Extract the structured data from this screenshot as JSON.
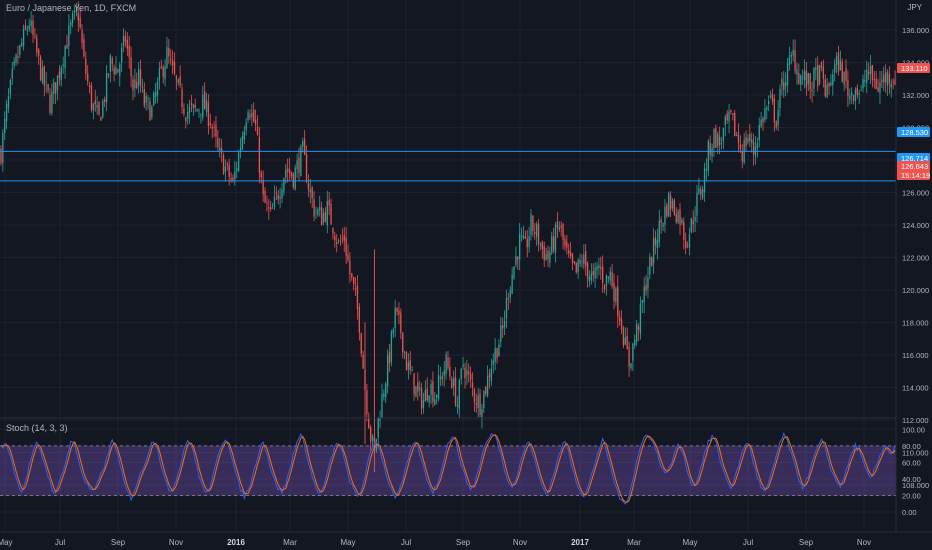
{
  "header": {
    "symbol_title": "Euro / Japanese Yen, 1D, FXCM",
    "currency": "JPY",
    "indicator_title": "Stoch (14, 3, 3)"
  },
  "colors": {
    "background": "#131722",
    "grid": "#1e222d",
    "up": "#26a69a",
    "down": "#ef5350",
    "hline": "#2196f3",
    "stoch_k": "#2962ff",
    "stoch_d": "#ff6d00",
    "stoch_band": "#7e57c2"
  },
  "price_axis": [
    "136.000",
    "134.000",
    "132.000",
    "130.000",
    "128.000",
    "126.000",
    "124.000",
    "122.000",
    "120.000",
    "118.000",
    "116.000",
    "114.000",
    "112.000",
    "110.000",
    "108.000"
  ],
  "stoch_axis": [
    "100.00",
    "80.00",
    "60.00",
    "40.00",
    "20.00",
    "0.00"
  ],
  "time_axis": [
    {
      "label": "May",
      "bold": false
    },
    {
      "label": "Jul",
      "bold": false
    },
    {
      "label": "Sep",
      "bold": false
    },
    {
      "label": "Nov",
      "bold": false
    },
    {
      "label": "2016",
      "bold": true
    },
    {
      "label": "Mar",
      "bold": false
    },
    {
      "label": "May",
      "bold": false
    },
    {
      "label": "Jul",
      "bold": false
    },
    {
      "label": "Sep",
      "bold": false
    },
    {
      "label": "Nov",
      "bold": false
    },
    {
      "label": "2017",
      "bold": true
    },
    {
      "label": "Mar",
      "bold": false
    },
    {
      "label": "May",
      "bold": false
    },
    {
      "label": "Jul",
      "bold": false
    },
    {
      "label": "Sep",
      "bold": false
    },
    {
      "label": "Nov",
      "bold": false
    }
  ],
  "price_tags": [
    {
      "label": "133.110",
      "color": "#ef5350",
      "value": 133.11
    },
    {
      "label": "128.530",
      "color": "#2196f3",
      "value": 128.53
    },
    {
      "label": "126.714",
      "color": "#2196f3",
      "value": 126.714
    },
    {
      "label": "126.643",
      "color": "#ef5350",
      "value": 126.643
    },
    {
      "label": "15:14:19",
      "color": "#ef5350",
      "value": 125.9
    }
  ],
  "horizontal_lines": [
    128.53,
    126.714
  ],
  "stoch_bands": [
    20,
    80
  ],
  "chart_data": {
    "type": "candlestick",
    "ylim": [
      108,
      137
    ],
    "stoch_ylim": [
      0,
      100
    ],
    "close_path": [
      [
        0,
        128.5
      ],
      [
        3,
        131
      ],
      [
        6,
        133
      ],
      [
        8,
        134
      ],
      [
        12,
        135.5
      ],
      [
        15,
        136.5
      ],
      [
        18,
        135
      ],
      [
        22,
        133
      ],
      [
        26,
        131.5
      ],
      [
        30,
        133
      ],
      [
        34,
        135
      ],
      [
        38,
        136.5
      ],
      [
        41,
        137
      ],
      [
        44,
        134
      ],
      [
        48,
        131.5
      ],
      [
        52,
        130.5
      ],
      [
        55,
        132
      ],
      [
        58,
        134
      ],
      [
        62,
        133.5
      ],
      [
        66,
        135.5
      ],
      [
        70,
        132.5
      ],
      [
        73,
        133
      ],
      [
        76,
        131.5
      ],
      [
        80,
        131
      ],
      [
        84,
        133
      ],
      [
        88,
        134.5
      ],
      [
        92,
        133
      ],
      [
        95,
        132
      ],
      [
        98,
        131
      ],
      [
        103,
        131
      ],
      [
        107,
        131.5
      ],
      [
        111,
        130.5
      ],
      [
        115,
        128.5
      ],
      [
        119,
        127.5
      ],
      [
        123,
        126.5
      ],
      [
        127,
        129
      ],
      [
        131,
        131.5
      ],
      [
        135,
        130
      ],
      [
        139,
        125.5
      ],
      [
        143,
        124.5
      ],
      [
        147,
        126
      ],
      [
        151,
        127.5
      ],
      [
        155,
        127
      ],
      [
        160,
        128.5
      ],
      [
        163,
        126.5
      ],
      [
        166,
        125
      ],
      [
        170,
        124.5
      ],
      [
        173,
        125
      ],
      [
        176,
        124
      ],
      [
        179,
        122.8
      ],
      [
        182,
        123.2
      ],
      [
        185,
        121
      ],
      [
        188,
        119.5
      ],
      [
        190,
        118
      ],
      [
        193,
        114
      ],
      [
        196,
        111
      ],
      [
        198,
        110
      ],
      [
        200,
        112
      ],
      [
        203,
        114
      ],
      [
        206,
        116
      ],
      [
        209,
        118.5
      ],
      [
        212,
        117.5
      ],
      [
        215,
        115.5
      ],
      [
        218,
        114.5
      ],
      [
        221,
        113.5
      ],
      [
        224,
        113.2
      ],
      [
        227,
        114.2
      ],
      [
        230,
        113.5
      ],
      [
        233,
        114.5
      ],
      [
        236,
        115.5
      ],
      [
        239,
        114.5
      ],
      [
        242,
        113
      ],
      [
        245,
        115.5
      ],
      [
        248,
        114.5
      ],
      [
        251,
        113.5
      ],
      [
        254,
        113
      ],
      [
        257,
        114
      ],
      [
        260,
        115.5
      ],
      [
        263,
        116.5
      ],
      [
        266,
        117.5
      ],
      [
        269,
        120
      ],
      [
        272,
        121.5
      ],
      [
        275,
        123
      ],
      [
        278,
        122.5
      ],
      [
        281,
        124
      ],
      [
        284,
        123.5
      ],
      [
        287,
        122.5
      ],
      [
        290,
        122
      ],
      [
        293,
        123
      ],
      [
        296,
        124
      ],
      [
        299,
        122.5
      ],
      [
        302,
        121.5
      ],
      [
        305,
        121
      ],
      [
        308,
        122
      ],
      [
        311,
        121.2
      ],
      [
        314,
        120.5
      ],
      [
        317,
        121.5
      ],
      [
        320,
        120.5
      ],
      [
        323,
        121
      ],
      [
        326,
        119.5
      ],
      [
        329,
        118
      ],
      [
        331,
        116.5
      ],
      [
        333,
        115.5
      ],
      [
        336,
        117
      ],
      [
        339,
        118.5
      ],
      [
        342,
        120.5
      ],
      [
        345,
        122
      ],
      [
        348,
        123.5
      ],
      [
        351,
        124.5
      ],
      [
        354,
        125.5
      ],
      [
        357,
        125
      ],
      [
        360,
        124.5
      ],
      [
        363,
        123
      ],
      [
        366,
        124
      ],
      [
        369,
        125.5
      ],
      [
        372,
        126.5
      ],
      [
        375,
        128.5
      ],
      [
        378,
        129.5
      ],
      [
        381,
        129
      ],
      [
        384,
        130
      ],
      [
        387,
        130.5
      ],
      [
        390,
        129.5
      ],
      [
        393,
        128.5
      ],
      [
        396,
        129.5
      ],
      [
        399,
        128.5
      ],
      [
        402,
        130
      ],
      [
        405,
        131
      ],
      [
        408,
        131.5
      ],
      [
        411,
        130.5
      ],
      [
        414,
        132.5
      ],
      [
        417,
        133.5
      ],
      [
        420,
        134.5
      ],
      [
        423,
        133.2
      ],
      [
        426,
        133
      ],
      [
        429,
        132.5
      ],
      [
        432,
        133.2
      ],
      [
        435,
        133.2
      ],
      [
        438,
        132
      ],
      [
        441,
        133.5
      ],
      [
        444,
        134
      ],
      [
        447,
        133
      ],
      [
        450,
        132
      ],
      [
        453,
        132.5
      ],
      [
        456,
        132
      ],
      [
        459,
        133.5
      ],
      [
        462,
        133
      ],
      [
        465,
        132.5
      ],
      [
        468,
        133
      ],
      [
        471,
        133.2
      ],
      [
        474,
        133.1
      ]
    ],
    "stoch_k_path": [
      [
        0,
        78
      ],
      [
        3,
        82
      ],
      [
        5,
        68
      ],
      [
        7,
        50
      ],
      [
        9,
        34
      ],
      [
        11,
        26
      ],
      [
        13,
        37
      ],
      [
        15,
        56
      ],
      [
        17,
        73
      ],
      [
        19,
        82
      ],
      [
        21,
        72
      ],
      [
        23,
        60
      ],
      [
        25,
        44
      ],
      [
        27,
        30
      ],
      [
        29,
        21
      ],
      [
        31,
        36
      ],
      [
        33,
        52
      ],
      [
        35,
        66
      ],
      [
        37,
        86
      ],
      [
        39,
        82
      ],
      [
        41,
        64
      ],
      [
        43,
        47
      ],
      [
        45,
        36
      ],
      [
        47,
        29
      ],
      [
        49,
        24
      ],
      [
        51,
        33
      ],
      [
        53,
        45
      ],
      [
        55,
        57
      ],
      [
        57,
        72
      ],
      [
        59,
        86
      ],
      [
        61,
        78
      ],
      [
        63,
        57
      ],
      [
        65,
        38
      ],
      [
        67,
        24
      ],
      [
        69,
        17
      ],
      [
        71,
        28
      ],
      [
        73,
        40
      ],
      [
        75,
        51
      ],
      [
        77,
        64
      ],
      [
        79,
        79
      ],
      [
        81,
        87
      ],
      [
        83,
        78
      ],
      [
        85,
        56
      ],
      [
        87,
        38
      ],
      [
        89,
        26
      ],
      [
        91,
        28
      ],
      [
        93,
        40
      ],
      [
        95,
        56
      ],
      [
        97,
        75
      ],
      [
        99,
        88
      ],
      [
        101,
        80
      ],
      [
        103,
        63
      ],
      [
        105,
        45
      ],
      [
        107,
        30
      ],
      [
        109,
        22
      ],
      [
        111,
        32
      ],
      [
        113,
        48
      ],
      [
        115,
        66
      ],
      [
        117,
        82
      ],
      [
        119,
        89
      ],
      [
        121,
        80
      ],
      [
        123,
        60
      ],
      [
        125,
        42
      ],
      [
        127,
        28
      ],
      [
        129,
        19
      ],
      [
        131,
        26
      ],
      [
        133,
        40
      ],
      [
        135,
        58
      ],
      [
        137,
        76
      ],
      [
        139,
        85
      ],
      [
        141,
        72
      ],
      [
        143,
        52
      ],
      [
        145,
        38
      ],
      [
        147,
        29
      ],
      [
        149,
        24
      ],
      [
        151,
        34
      ],
      [
        153,
        50
      ],
      [
        155,
        70
      ],
      [
        157,
        86
      ],
      [
        159,
        92
      ],
      [
        161,
        82
      ],
      [
        163,
        60
      ],
      [
        165,
        42
      ],
      [
        167,
        30
      ],
      [
        169,
        21
      ],
      [
        171,
        30
      ],
      [
        173,
        46
      ],
      [
        175,
        64
      ],
      [
        177,
        78
      ],
      [
        179,
        84
      ],
      [
        181,
        72
      ],
      [
        183,
        54
      ],
      [
        185,
        38
      ],
      [
        187,
        26
      ],
      [
        189,
        18
      ],
      [
        191,
        26
      ],
      [
        193,
        44
      ],
      [
        195,
        64
      ],
      [
        197,
        78
      ],
      [
        199,
        86
      ],
      [
        201,
        74
      ],
      [
        203,
        56
      ],
      [
        205,
        40
      ],
      [
        207,
        28
      ],
      [
        209,
        19
      ],
      [
        211,
        24
      ],
      [
        213,
        38
      ],
      [
        215,
        56
      ],
      [
        217,
        72
      ],
      [
        219,
        85
      ],
      [
        221,
        80
      ],
      [
        223,
        62
      ],
      [
        225,
        46
      ],
      [
        227,
        33
      ],
      [
        229,
        25
      ],
      [
        231,
        32
      ],
      [
        233,
        48
      ],
      [
        235,
        66
      ],
      [
        237,
        82
      ],
      [
        239,
        92
      ],
      [
        241,
        86
      ],
      [
        243,
        68
      ],
      [
        245,
        50
      ],
      [
        247,
        36
      ],
      [
        249,
        28
      ],
      [
        251,
        34
      ],
      [
        253,
        50
      ],
      [
        255,
        68
      ],
      [
        257,
        82
      ],
      [
        259,
        90
      ],
      [
        261,
        95
      ],
      [
        263,
        88
      ],
      [
        265,
        70
      ],
      [
        267,
        52
      ],
      [
        269,
        38
      ],
      [
        271,
        30
      ],
      [
        273,
        40
      ],
      [
        275,
        56
      ],
      [
        277,
        72
      ],
      [
        279,
        84
      ],
      [
        281,
        80
      ],
      [
        283,
        62
      ],
      [
        285,
        44
      ],
      [
        287,
        32
      ],
      [
        289,
        22
      ],
      [
        291,
        30
      ],
      [
        293,
        46
      ],
      [
        295,
        62
      ],
      [
        297,
        76
      ],
      [
        299,
        86
      ],
      [
        301,
        72
      ],
      [
        303,
        54
      ],
      [
        305,
        38
      ],
      [
        307,
        26
      ],
      [
        309,
        18
      ],
      [
        311,
        28
      ],
      [
        313,
        44
      ],
      [
        315,
        60
      ],
      [
        317,
        76
      ],
      [
        319,
        86
      ],
      [
        321,
        74
      ],
      [
        323,
        56
      ],
      [
        325,
        38
      ],
      [
        327,
        24
      ],
      [
        329,
        12
      ],
      [
        331,
        10
      ],
      [
        333,
        22
      ],
      [
        335,
        40
      ],
      [
        337,
        60
      ],
      [
        339,
        78
      ],
      [
        341,
        90
      ],
      [
        343,
        94
      ],
      [
        345,
        88
      ],
      [
        347,
        76
      ],
      [
        349,
        62
      ],
      [
        351,
        52
      ],
      [
        353,
        46
      ],
      [
        355,
        58
      ],
      [
        357,
        70
      ],
      [
        359,
        82
      ],
      [
        361,
        74
      ],
      [
        363,
        58
      ],
      [
        365,
        42
      ],
      [
        367,
        30
      ],
      [
        369,
        38
      ],
      [
        371,
        54
      ],
      [
        373,
        70
      ],
      [
        375,
        84
      ],
      [
        377,
        92
      ],
      [
        379,
        84
      ],
      [
        381,
        66
      ],
      [
        383,
        50
      ],
      [
        385,
        38
      ],
      [
        387,
        30
      ],
      [
        389,
        40
      ],
      [
        391,
        56
      ],
      [
        393,
        72
      ],
      [
        395,
        84
      ],
      [
        397,
        78
      ],
      [
        399,
        60
      ],
      [
        401,
        42
      ],
      [
        403,
        30
      ],
      [
        405,
        24
      ],
      [
        407,
        34
      ],
      [
        409,
        50
      ],
      [
        411,
        68
      ],
      [
        413,
        84
      ],
      [
        415,
        92
      ],
      [
        417,
        86
      ],
      [
        419,
        70
      ],
      [
        421,
        54
      ],
      [
        423,
        40
      ],
      [
        425,
        30
      ],
      [
        427,
        38
      ],
      [
        429,
        52
      ],
      [
        431,
        66
      ],
      [
        433,
        78
      ],
      [
        435,
        86
      ],
      [
        437,
        76
      ],
      [
        439,
        60
      ],
      [
        441,
        46
      ],
      [
        443,
        36
      ],
      [
        445,
        32
      ],
      [
        447,
        42
      ],
      [
        449,
        56
      ],
      [
        451,
        70
      ],
      [
        453,
        80
      ],
      [
        455,
        74
      ],
      [
        457,
        60
      ],
      [
        459,
        48
      ],
      [
        461,
        40
      ],
      [
        463,
        50
      ],
      [
        465,
        62
      ],
      [
        467,
        74
      ],
      [
        469,
        82
      ],
      [
        471,
        70
      ],
      [
        473,
        74
      ],
      [
        474,
        80
      ]
    ]
  }
}
